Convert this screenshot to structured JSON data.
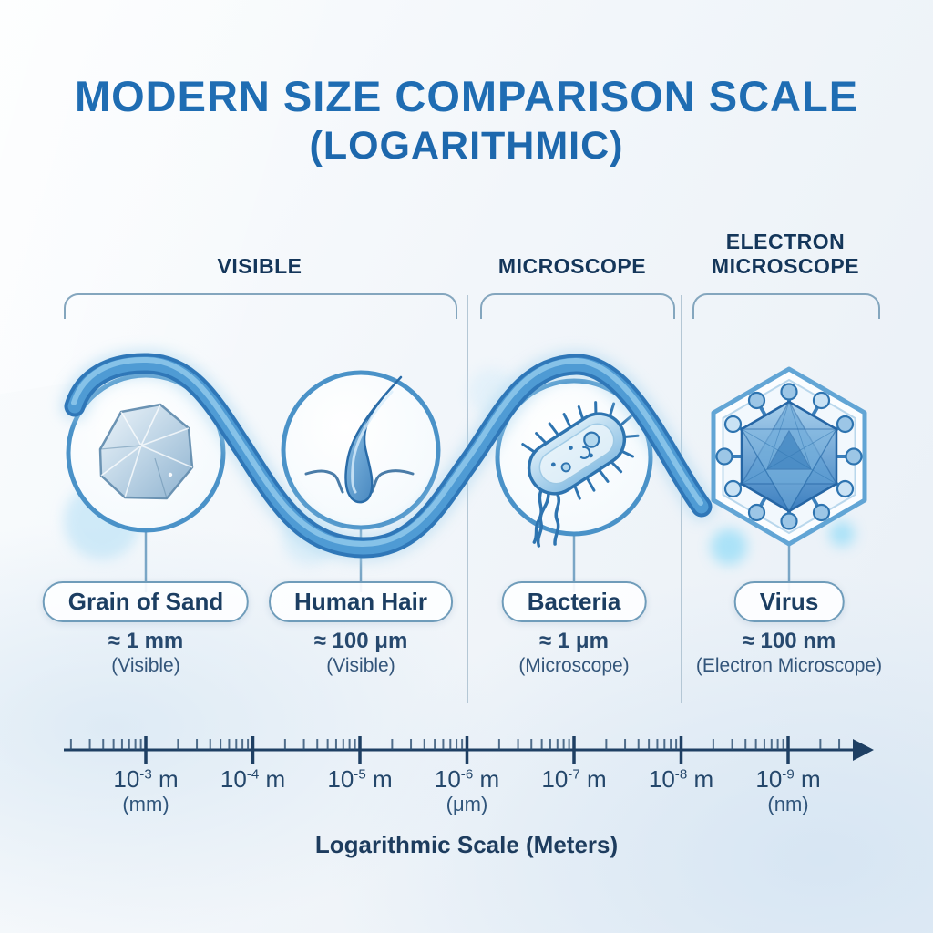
{
  "title": {
    "line1": "MODERN SIZE COMPARISON SCALE",
    "line2": "(LOGARITHMIC)"
  },
  "categories": [
    {
      "label": "VISIBLE"
    },
    {
      "label": "MICROSCOPE"
    },
    {
      "label": "ELECTRON MICROSCOPE"
    }
  ],
  "items": [
    {
      "name": "Grain of Sand",
      "size": "≈ 1 mm",
      "method": "(Visible)",
      "icon": "sand-grain-icon"
    },
    {
      "name": "Human Hair",
      "size": "≈ 100 μm",
      "method": "(Visible)",
      "icon": "hair-follicle-icon"
    },
    {
      "name": "Bacteria",
      "size": "≈ 1 μm",
      "method": "(Microscope)",
      "icon": "bacteria-icon"
    },
    {
      "name": "Virus",
      "size": "≈ 100 nm",
      "method": "(Electron Microscope)",
      "icon": "virus-icon"
    }
  ],
  "axis": {
    "ticks": [
      {
        "base": "10",
        "exp": "-3",
        "unit": "m",
        "alias": "(mm)"
      },
      {
        "base": "10",
        "exp": "-4",
        "unit": "m",
        "alias": ""
      },
      {
        "base": "10",
        "exp": "-5",
        "unit": "m",
        "alias": ""
      },
      {
        "base": "10",
        "exp": "-6",
        "unit": "m",
        "alias": "(μm)"
      },
      {
        "base": "10",
        "exp": "-7",
        "unit": "m",
        "alias": ""
      },
      {
        "base": "10",
        "exp": "-8",
        "unit": "m",
        "alias": ""
      },
      {
        "base": "10",
        "exp": "-9",
        "unit": "m",
        "alias": "(nm)"
      }
    ],
    "caption": "Logarithmic Scale (Meters)"
  },
  "colors": {
    "title_blue": "#1f6db3",
    "navy_text": "#16365c",
    "ribbon_blue": "#3f8cc8",
    "circle_border_blue": "#4a92c8",
    "pill_border": "#6f9cba",
    "bracket_gray_blue": "#84a6be",
    "axis_navy": "#1e3f63",
    "background_light": "#eef3f8"
  }
}
